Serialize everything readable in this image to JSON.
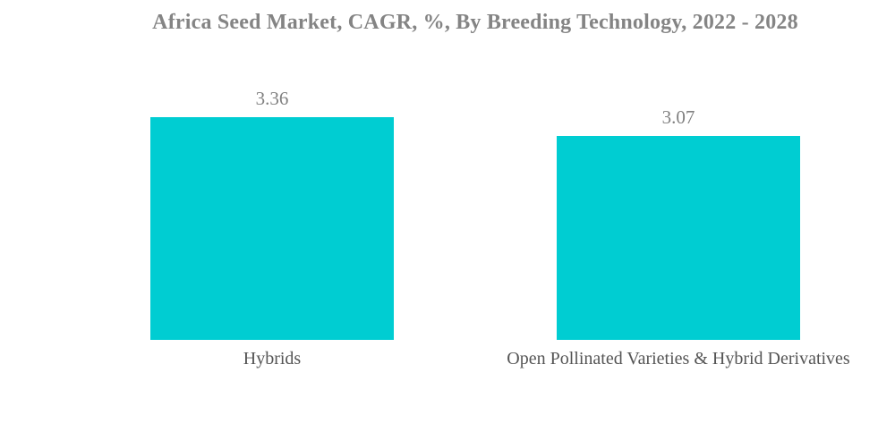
{
  "colors": {
    "background": "#FFFFFF",
    "bar_fill": "#00CDD2",
    "title_text": "#848484",
    "value_label_text": "#808080",
    "category_label_text": "#555555"
  },
  "chart_data": {
    "type": "bar",
    "orientation": "vertical",
    "title": "Africa Seed Market, CAGR, %, By Breeding Technology, 2022 - 2028",
    "categories": [
      "Hybrids",
      "Open Pollinated Varieties & Hybrid Derivatives"
    ],
    "values": [
      3.36,
      3.07
    ],
    "value_labels": [
      "3.36",
      "3.07"
    ],
    "xlabel": "",
    "ylabel": "",
    "ylim": [
      0,
      3.36
    ],
    "grid": false,
    "legend": "none",
    "bar_color": "#00CDD2"
  }
}
